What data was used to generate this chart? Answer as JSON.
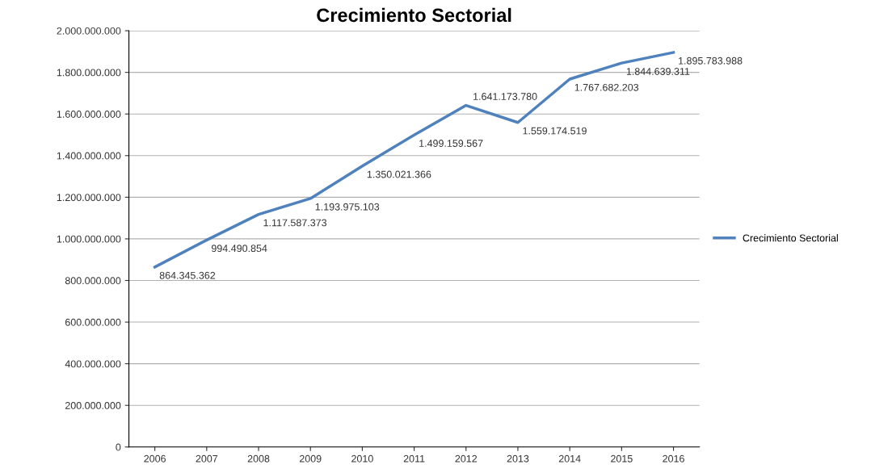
{
  "chart_data": {
    "type": "line",
    "title": "Crecimiento Sectorial",
    "categories": [
      "2006",
      "2007",
      "2008",
      "2009",
      "2010",
      "2011",
      "2012",
      "2013",
      "2014",
      "2015",
      "2016"
    ],
    "series": [
      {
        "name": "Crecimiento Sectorial",
        "color": "#4f81bd",
        "values": [
          864345362,
          994490854,
          1117587373,
          1193975103,
          1350021366,
          1499159567,
          1641173780,
          1559174519,
          1767682203,
          1844639311,
          1895783988
        ],
        "value_labels": [
          "864.345.362",
          "994.490.854",
          "1.117.587.373",
          "1.193.975.103",
          "1.350.021.366",
          "1.499.159.567",
          "1.641.173.780",
          "1.559.174.519",
          "1.767.682.203",
          "1.844.639.311",
          "1.895.783.988"
        ]
      }
    ],
    "ylim": [
      0,
      2000000000
    ],
    "yticks": [
      {
        "value": 0,
        "label": "0"
      },
      {
        "value": 200000000,
        "label": "200.000.000"
      },
      {
        "value": 400000000,
        "label": "400.000.000"
      },
      {
        "value": 600000000,
        "label": "600.000.000"
      },
      {
        "value": 800000000,
        "label": "800.000.000"
      },
      {
        "value": 1000000000,
        "label": "1.000.000.000"
      },
      {
        "value": 1200000000,
        "label": "1.200.000.000"
      },
      {
        "value": 1400000000,
        "label": "1.400.000.000"
      },
      {
        "value": 1600000000,
        "label": "1.600.000.000"
      },
      {
        "value": 1800000000,
        "label": "1.800.000.000"
      },
      {
        "value": 2000000000,
        "label": "2.000.000.000"
      }
    ],
    "grid": "y",
    "legend": "right",
    "marker": "none",
    "line_style": "solid"
  }
}
